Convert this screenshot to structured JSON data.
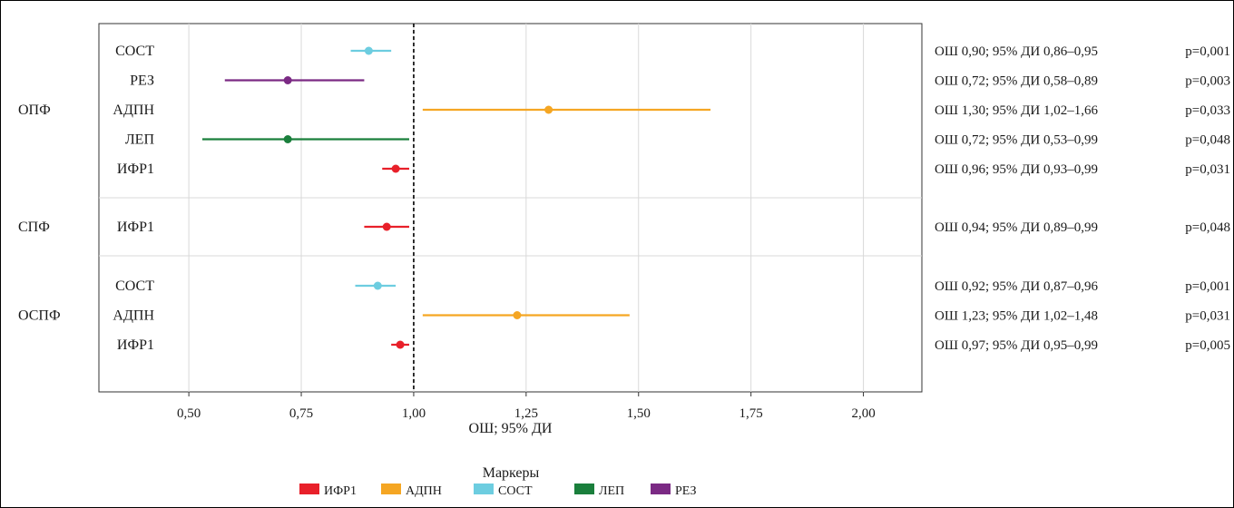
{
  "chart_data": {
    "type": "forest",
    "xlabel": "ОШ; 95% ДИ",
    "xlim": [
      0.3,
      2.13
    ],
    "xticks": [
      0.5,
      0.75,
      1.0,
      1.25,
      1.5,
      1.75,
      2.0
    ],
    "xtick_labels": [
      "0,50",
      "0,75",
      "1,00",
      "1,25",
      "1,50",
      "1,75",
      "2,00"
    ],
    "reference_line": 1.0,
    "grid": true,
    "legend": {
      "title": "Маркеры",
      "position": "bottom",
      "items": [
        {
          "label": "ИФР1",
          "color": "#e8202a"
        },
        {
          "label": "АДПН",
          "color": "#f5a623"
        },
        {
          "label": "СОСТ",
          "color": "#6dcde0"
        },
        {
          "label": "ЛЕП",
          "color": "#1a7f3c"
        },
        {
          "label": "РЕЗ",
          "color": "#7b2a84"
        }
      ]
    },
    "groups": [
      {
        "name": "ОПФ",
        "rows": [
          {
            "marker": "СОСТ",
            "or": 0.9,
            "lo": 0.86,
            "hi": 0.95,
            "text": "ОШ 0,90; 95% ДИ 0,86–0,95",
            "p": "p=0,001"
          },
          {
            "marker": "РЕЗ",
            "or": 0.72,
            "lo": 0.58,
            "hi": 0.89,
            "text": "ОШ 0,72; 95% ДИ 0,58–0,89",
            "p": "p=0,003"
          },
          {
            "marker": "АДПН",
            "or": 1.3,
            "lo": 1.02,
            "hi": 1.66,
            "text": "ОШ 1,30; 95% ДИ 1,02–1,66",
            "p": "p=0,033"
          },
          {
            "marker": "ЛЕП",
            "or": 0.72,
            "lo": 0.53,
            "hi": 0.99,
            "text": "ОШ 0,72; 95% ДИ 0,53–0,99",
            "p": "p=0,048"
          },
          {
            "marker": "ИФР1",
            "or": 0.96,
            "lo": 0.93,
            "hi": 0.99,
            "text": "ОШ 0,96; 95% ДИ 0,93–0,99",
            "p": "p=0,031"
          }
        ]
      },
      {
        "name": "СПФ",
        "rows": [
          {
            "marker": "ИФР1",
            "or": 0.94,
            "lo": 0.89,
            "hi": 0.99,
            "text": "ОШ 0,94; 95% ДИ 0,89–0,99",
            "p": "p=0,048"
          }
        ]
      },
      {
        "name": "ОСПФ",
        "rows": [
          {
            "marker": "СОСТ",
            "or": 0.92,
            "lo": 0.87,
            "hi": 0.96,
            "text": "ОШ 0,92; 95% ДИ 0,87–0,96",
            "p": "p=0,001"
          },
          {
            "marker": "АДПН",
            "or": 1.23,
            "lo": 1.02,
            "hi": 1.48,
            "text": "ОШ 1,23; 95% ДИ 1,02–1,48",
            "p": "p=0,031"
          },
          {
            "marker": "ИФР1",
            "or": 0.97,
            "lo": 0.95,
            "hi": 0.99,
            "text": "ОШ 0,97; 95% ДИ 0,95–0,99",
            "p": "p=0,005"
          }
        ]
      }
    ]
  }
}
